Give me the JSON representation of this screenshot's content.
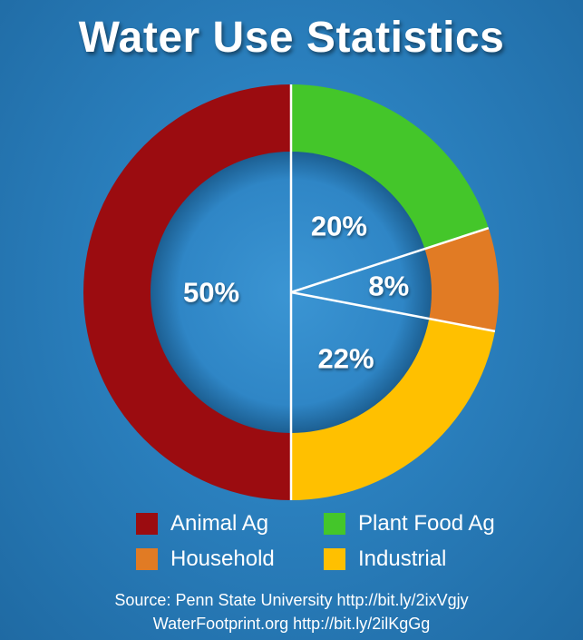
{
  "title": "Water Use Statistics",
  "chart_data": {
    "type": "pie",
    "title": "Water Use Statistics",
    "slices": [
      {
        "name": "Animal Ag",
        "value": 50,
        "label": "50%",
        "color": "#9b0c10"
      },
      {
        "name": "Plant Food Ag",
        "value": 20,
        "label": "20%",
        "color": "#44c62a"
      },
      {
        "name": "Household",
        "value": 8,
        "label": "8%",
        "color": "#e17b24"
      },
      {
        "name": "Industrial",
        "value": 22,
        "label": "22%",
        "color": "#ffc000"
      }
    ],
    "legend_position": "bottom"
  },
  "legend": [
    {
      "label": "Animal Ag",
      "color": "#9b0c10"
    },
    {
      "label": "Plant Food Ag",
      "color": "#44c62a"
    },
    {
      "label": "Household",
      "color": "#e17b24"
    },
    {
      "label": "Industrial",
      "color": "#ffc000"
    }
  ],
  "source": {
    "line1": "Source: Penn State University http://bit.ly/2ixVgjy",
    "line2": "WaterFootprint.org http://bit.ly/2ilKgGg"
  }
}
